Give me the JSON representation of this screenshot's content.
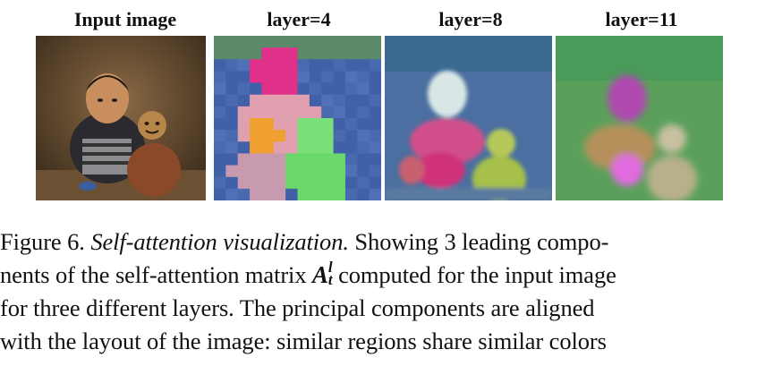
{
  "panels": [
    {
      "title": "Input image"
    },
    {
      "title": "layer=4"
    },
    {
      "title": "layer=8"
    },
    {
      "title": "layer=11"
    }
  ],
  "caption": {
    "line1_prefix": "Figure 6. ",
    "line1_italic": "Self-attention visualization.",
    "line1_rest": " Showing 3 leading compo-",
    "line2_a": "nents of the self-attention matrix ",
    "math_base": "A",
    "math_sup": "l",
    "math_sub": "t",
    "line2_b": " computed for the input image",
    "line3": "for three different layers.  The principal components are aligned",
    "line4": "with the layout of the image: similar regions share similar colors"
  }
}
